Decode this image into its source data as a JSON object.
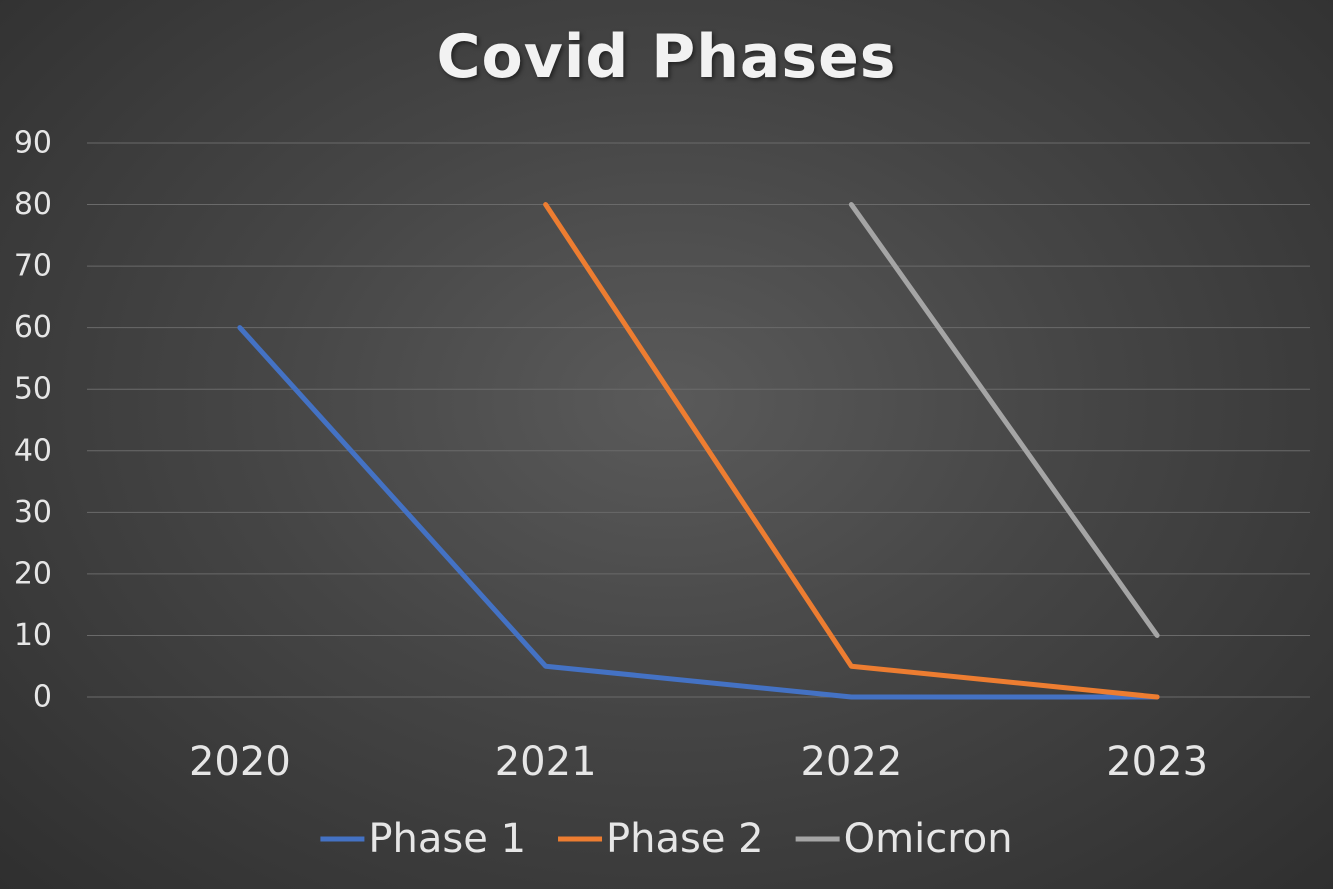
{
  "chart_data": {
    "type": "line",
    "title": "Covid Phases",
    "categories": [
      "2020",
      "2021",
      "2022",
      "2023"
    ],
    "ylim": [
      0,
      90
    ],
    "yticks": [
      0,
      10,
      20,
      30,
      40,
      50,
      60,
      70,
      80,
      90
    ],
    "grid": true,
    "legend_position": "bottom",
    "series": [
      {
        "name": "Phase 1",
        "color": "#4472c4",
        "values": [
          60,
          5,
          0,
          0
        ]
      },
      {
        "name": "Phase 2",
        "color": "#ed7d31",
        "values": [
          null,
          80,
          5,
          0
        ]
      },
      {
        "name": "Omicron",
        "color": "#a5a5a5",
        "values": [
          null,
          null,
          80,
          10
        ]
      }
    ]
  }
}
